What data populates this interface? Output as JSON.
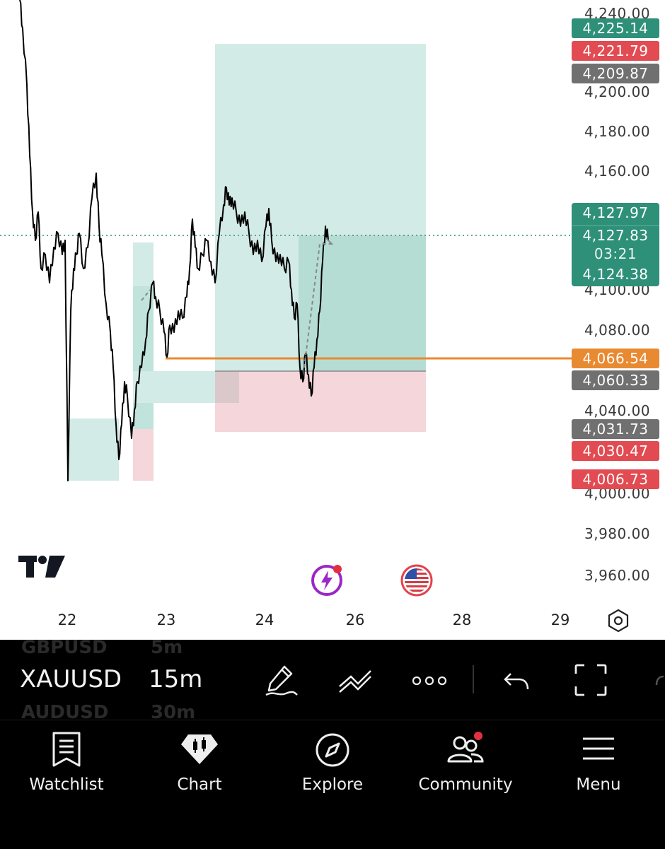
{
  "chart": {
    "symbol": "XAUUSD",
    "interval": "15m",
    "symbols_ghost": [
      "GBPUSD",
      "AUDUSD"
    ],
    "intervals_ghost": [
      "5m",
      "30m"
    ],
    "price_axis": [
      "4,240.00",
      "4,200.00",
      "4,180.00",
      "4,160.00",
      "4,100.00",
      "4,080.00",
      "4,040.00",
      "4,000.00",
      "3,980.00",
      "3,960.00"
    ],
    "date_axis": [
      "22",
      "23",
      "24",
      "26",
      "28",
      "29"
    ],
    "tags": {
      "take_profit_1": "4,225.14",
      "stop_1": "4,221.79",
      "level_1": "4,209.87",
      "last_high": "4,127.97",
      "last_price": "4,127.83",
      "countdown": "03:21",
      "last_low": "4,124.38",
      "horizontal_line": "4,066.54",
      "entry_level": "4,060.33",
      "level_2": "4,031.73",
      "stop_2": "4,030.47",
      "stop_3": "4,006.73"
    },
    "colors": {
      "up_tag": "#2e9079",
      "down_tag": "#e24b52",
      "neutral_tag": "#707070",
      "line_tag": "#e88a32",
      "profit_zone": "#d3ebe6",
      "loss_zone": "#f5d6da"
    },
    "logo": "TradingView"
  },
  "icons": {
    "flash": "lightning-icon",
    "flag": "us-flag-icon",
    "settings": "hexagon-settings-icon"
  },
  "toolbar": {
    "tools": [
      "pen-icon",
      "trend-lines-icon",
      "more-icon",
      "undo-icon",
      "fullscreen-icon"
    ]
  },
  "nav": {
    "items": [
      {
        "label": "Watchlist",
        "icon": "watchlist-icon"
      },
      {
        "label": "Chart",
        "icon": "chart-icon"
      },
      {
        "label": "Explore",
        "icon": "compass-icon"
      },
      {
        "label": "Community",
        "icon": "community-icon"
      },
      {
        "label": "Menu",
        "icon": "menu-icon"
      }
    ]
  }
}
